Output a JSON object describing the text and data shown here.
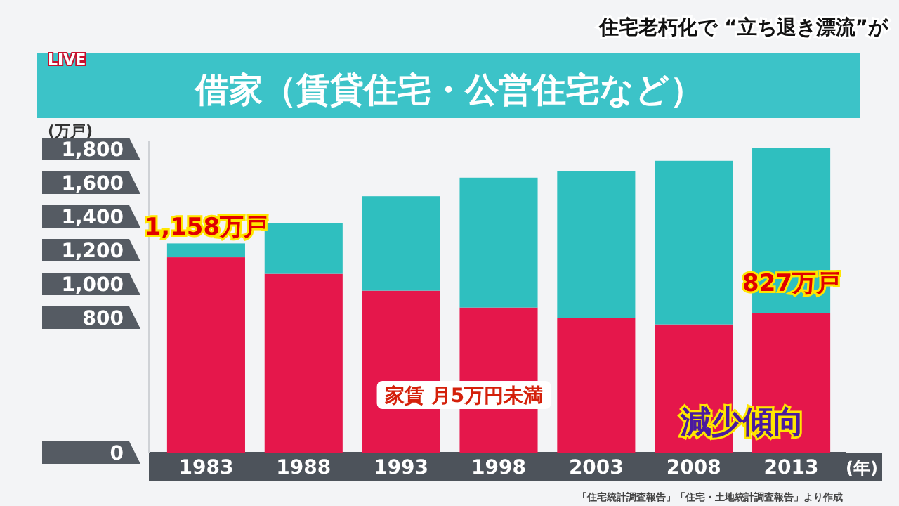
{
  "chart_data": {
    "type": "bar",
    "stacked": true,
    "title": "借家（賃貸住宅・公営住宅など）",
    "ylabel": "(万戸)",
    "xlabel": "(年)",
    "categories": [
      "1983",
      "1988",
      "1993",
      "1998",
      "2003",
      "2008",
      "2013"
    ],
    "series": [
      {
        "name": "家賃 月5万円未満",
        "color": "#e5174b",
        "values": [
          1158,
          1060,
          960,
          860,
          800,
          760,
          827
        ]
      },
      {
        "color": "#2fbfbf",
        "values": [
          82,
          300,
          560,
          770,
          870,
          970,
          980
        ]
      }
    ],
    "ylim": [
      0,
      1850
    ],
    "yticks": [
      0,
      800,
      {
        "value": 1000,
        "label": "1,000"
      },
      {
        "value": 1200,
        "label": "1,200"
      },
      {
        "value": 1400,
        "label": "1,400"
      },
      {
        "value": 1600,
        "label": "1,600"
      },
      {
        "value": 1800,
        "label": "1,800"
      }
    ],
    "annotations": [
      {
        "text": "1,158万戸",
        "x": "1983",
        "y": 1158
      },
      {
        "text": "827万戸",
        "x": "2013",
        "y": 827
      },
      "減少傾向",
      "「住宅統計調査報告」「住宅・土地統計調査報告」より作成",
      "住宅老朽化で “立ち退き漂流”が",
      "LIVE"
    ],
    "grid": false
  }
}
